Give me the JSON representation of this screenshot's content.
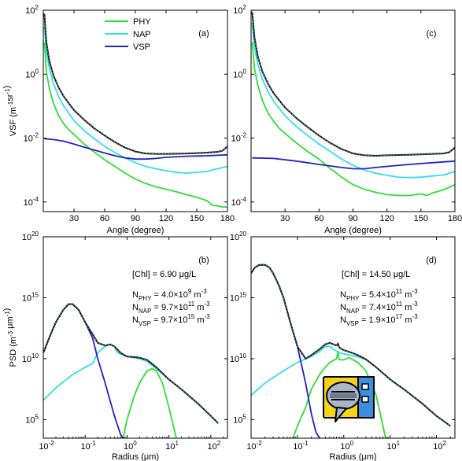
{
  "chart_data": [
    {
      "type": "line",
      "panel_label": "(a)",
      "xlabel": "Angle (degree)",
      "ylabel": "VSF (m-1sr-1)",
      "xlim": [
        0,
        180
      ],
      "ylim": [
        5e-05,
        100
      ],
      "yscale": "log",
      "xticks": [
        30,
        60,
        90,
        120,
        150,
        180
      ],
      "yticks": [
        0.0001,
        0.01,
        1,
        100
      ],
      "ytick_labels": [
        [
          "10",
          "-4"
        ],
        [
          "10",
          "-2"
        ],
        [
          "10",
          "0"
        ],
        [
          "10",
          "2"
        ]
      ],
      "legend": [
        "PHY",
        "NAP",
        "VSP"
      ],
      "series": [
        {
          "name": "PHY",
          "color": "#33dd33",
          "x": [
            1,
            3,
            6,
            10,
            15,
            20,
            25,
            30,
            40,
            50,
            60,
            70,
            80,
            90,
            100,
            110,
            120,
            130,
            140,
            150,
            160,
            165,
            170,
            175,
            180
          ],
          "y": [
            10,
            1.2,
            0.35,
            0.12,
            0.05,
            0.028,
            0.018,
            0.013,
            0.0065,
            0.0036,
            0.0021,
            0.0013,
            0.0008,
            0.00052,
            0.00038,
            0.0003,
            0.00025,
            0.00021,
            0.00017,
            0.00014,
            0.00011,
            8e-05,
            7.5e-05,
            7e-05,
            7e-05
          ]
        },
        {
          "name": "NAP",
          "color": "#33ddee",
          "x": [
            1,
            3,
            6,
            10,
            15,
            20,
            30,
            40,
            50,
            60,
            70,
            80,
            90,
            100,
            110,
            120,
            130,
            140,
            150,
            160,
            170,
            180
          ],
          "y": [
            30,
            5,
            1.5,
            0.5,
            0.2,
            0.1,
            0.035,
            0.017,
            0.0095,
            0.0055,
            0.0035,
            0.0024,
            0.0017,
            0.0013,
            0.0011,
            0.00095,
            0.00085,
            0.0008,
            0.00085,
            0.0009,
            0.0011,
            0.0013
          ]
        },
        {
          "name": "VSP",
          "color": "#2222cc",
          "x": [
            1,
            10,
            20,
            30,
            40,
            50,
            60,
            70,
            80,
            90,
            100,
            110,
            120,
            140,
            160,
            180
          ],
          "y": [
            0.0095,
            0.009,
            0.008,
            0.0065,
            0.0052,
            0.0042,
            0.0034,
            0.0028,
            0.0024,
            0.0022,
            0.0022,
            0.0023,
            0.0025,
            0.0027,
            0.0028,
            0.003
          ]
        },
        {
          "name": "",
          "color": "#111111",
          "x": [
            1,
            3,
            6,
            10,
            15,
            20,
            30,
            40,
            50,
            60,
            70,
            80,
            90,
            100,
            110,
            120,
            140,
            160,
            170,
            175,
            180
          ],
          "y": [
            80,
            10,
            2.5,
            0.9,
            0.38,
            0.2,
            0.075,
            0.037,
            0.02,
            0.012,
            0.0075,
            0.005,
            0.0038,
            0.0033,
            0.0032,
            0.0032,
            0.0033,
            0.0035,
            0.0037,
            0.004,
            0.0055
          ]
        }
      ]
    },
    {
      "type": "line",
      "panel_label": "(c)",
      "xlabel": "Angle (degree)",
      "ylabel": "",
      "xlim": [
        0,
        180
      ],
      "ylim": [
        5e-05,
        100
      ],
      "yscale": "log",
      "xticks": [
        30,
        60,
        90,
        120,
        150,
        180
      ],
      "yticks": [
        0.0001,
        0.01,
        1,
        100
      ],
      "series": [
        {
          "name": "PHY",
          "color": "#33dd33",
          "x": [
            1,
            3,
            6,
            10,
            15,
            20,
            25,
            30,
            40,
            50,
            60,
            70,
            80,
            90,
            100,
            110,
            120,
            130,
            140,
            150,
            155,
            160,
            170,
            180
          ],
          "y": [
            10,
            1.5,
            0.45,
            0.15,
            0.06,
            0.033,
            0.02,
            0.014,
            0.007,
            0.0038,
            0.0022,
            0.0011,
            0.0006,
            0.00035,
            0.00025,
            0.0002,
            0.00017,
            0.00016,
            0.00016,
            0.00018,
            0.00016,
            0.00019,
            0.00024,
            0.00035
          ]
        },
        {
          "name": "NAP",
          "color": "#33ddee",
          "x": [
            1,
            3,
            6,
            10,
            15,
            20,
            30,
            40,
            50,
            60,
            70,
            80,
            90,
            100,
            110,
            120,
            130,
            140,
            150,
            160,
            170,
            180
          ],
          "y": [
            40,
            7,
            2,
            0.7,
            0.28,
            0.14,
            0.05,
            0.023,
            0.012,
            0.0065,
            0.0038,
            0.0022,
            0.0014,
            0.001,
            0.0008,
            0.00068,
            0.0006,
            0.00058,
            0.0006,
            0.00065,
            0.0007,
            0.0009
          ]
        },
        {
          "name": "VSP",
          "color": "#2222cc",
          "x": [
            1,
            20,
            40,
            60,
            80,
            90,
            100,
            110,
            120,
            140,
            160,
            180
          ],
          "y": [
            0.0024,
            0.0023,
            0.0019,
            0.0015,
            0.0012,
            0.0011,
            0.0011,
            0.0012,
            0.0013,
            0.0015,
            0.0017,
            0.0019
          ]
        },
        {
          "name": "",
          "color": "#111111",
          "x": [
            1,
            3,
            6,
            10,
            15,
            20,
            30,
            40,
            50,
            60,
            70,
            80,
            90,
            100,
            110,
            120,
            140,
            160,
            170,
            175,
            180
          ],
          "y": [
            90,
            14,
            3.5,
            1.2,
            0.5,
            0.25,
            0.09,
            0.042,
            0.022,
            0.012,
            0.007,
            0.0045,
            0.0033,
            0.0029,
            0.0028,
            0.0029,
            0.003,
            0.0032,
            0.0033,
            0.0036,
            0.005
          ]
        }
      ]
    },
    {
      "type": "line",
      "panel_label": "(b)",
      "xlabel": "Radius (μm)",
      "ylabel": "PSD (m-3 μm-1)",
      "xlim": [
        0.01,
        250
      ],
      "ylim": [
        3000,
        100000000000000000000
      ],
      "xscale": "log",
      "yscale": "log",
      "xticks": [
        0.01,
        0.1,
        1,
        10,
        100
      ],
      "xtick_labels": [
        [
          "10",
          "-2"
        ],
        [
          "10",
          "-1"
        ],
        [
          "10",
          "0"
        ],
        [
          "10",
          "1"
        ],
        [
          "10",
          "2"
        ]
      ],
      "yticks": [
        100000,
        10000000000,
        1000000000000000,
        100000000000000000000
      ],
      "ytick_labels": [
        [
          "10",
          "5"
        ],
        [
          "10",
          "10"
        ],
        [
          "10",
          "15"
        ],
        [
          "10",
          "20"
        ]
      ],
      "annotations": {
        "chl": "[Chl] = 6.90 μg/L",
        "n_phy": {
          "label": "N",
          "sub": "PHY",
          "value": " = 4.0×10",
          "exp": "9",
          "unit": " m",
          "unit_exp": "-3"
        },
        "n_nap": {
          "label": "N",
          "sub": "NAP",
          "value": " = 9.7×10",
          "exp": "11",
          "unit": " m",
          "unit_exp": "-3"
        },
        "n_vsp": {
          "label": "N",
          "sub": "VSP",
          "value": " = 9.7×10",
          "exp": "15",
          "unit": " m",
          "unit_exp": "-3"
        }
      },
      "series": [
        {
          "name": "PHY",
          "color": "#33dd33",
          "x": [
            0.8,
            1,
            1.5,
            2,
            3,
            4,
            5,
            7,
            10,
            15
          ],
          "y": [
            3000,
            100000,
            10000000,
            100000000,
            1000000000,
            1500000000,
            1000000000,
            100000000,
            1000000,
            3000
          ]
        },
        {
          "name": "NAP",
          "color": "#33ddee",
          "x": [
            0.01,
            0.02,
            0.05,
            0.1,
            0.15,
            0.2,
            0.3,
            0.4,
            0.5,
            0.6,
            0.8,
            1,
            1.5,
            2,
            3,
            5,
            10,
            20,
            50,
            100,
            150
          ],
          "y": [
            4000000,
            40000000,
            500000000,
            2000000000,
            4000000000,
            30000000000,
            100000000000,
            150000000000,
            100000000000,
            30000000000,
            20000000000,
            15000000000,
            12000000000,
            10000000000,
            6000000000,
            1500000000,
            200000000,
            30000000,
            2000000,
            200000,
            50000
          ]
        },
        {
          "name": "VSP",
          "color": "#2222cc",
          "x": [
            0.01,
            0.015,
            0.02,
            0.03,
            0.04,
            0.05,
            0.07,
            0.1,
            0.15,
            0.2,
            0.3,
            0.4,
            0.5,
            0.6,
            0.7,
            0.8
          ],
          "y": [
            30000000000,
            1000000000000,
            10000000000000,
            100000000000000,
            300000000000000,
            300000000000000,
            100000000000000,
            10000000000000,
            500000000000,
            10000000000,
            100000000,
            3000000,
            200000,
            30000,
            6000,
            3000
          ]
        },
        {
          "name": "",
          "color": "#111111",
          "x": [
            0.01,
            0.015,
            0.02,
            0.03,
            0.04,
            0.05,
            0.07,
            0.1,
            0.15,
            0.2,
            0.3,
            0.4,
            0.5,
            0.7,
            1,
            1.5,
            2,
            3,
            5,
            10,
            20,
            50,
            100,
            150
          ],
          "y": [
            30000000000,
            1000000000000,
            10000000000000,
            100000000000000,
            300000000000000,
            300000000000000,
            100000000000000,
            10000000000000,
            1000000000000,
            200000000000,
            120000000000,
            150000000000,
            100000000000,
            30000000000,
            15000000000,
            14000000000,
            12000000000,
            8000000000,
            2000000000,
            200000000,
            30000000,
            2000000,
            200000,
            50000
          ]
        }
      ]
    },
    {
      "type": "line",
      "panel_label": "(d)",
      "xlabel": "Radius (μm)",
      "ylabel": "",
      "xlim": [
        0.01,
        250
      ],
      "ylim": [
        3000,
        100000000000000000000
      ],
      "xscale": "log",
      "yscale": "log",
      "xticks": [
        0.01,
        0.1,
        1,
        10,
        100
      ],
      "yticks": [
        100000,
        10000000000,
        1000000000000000,
        100000000000000000000
      ],
      "annotations": {
        "chl": "[Chl] = 14.50 μg/L",
        "n_phy": {
          "label": "N",
          "sub": "PHY",
          "value": " = 5.4×10",
          "exp": "11",
          "unit": " m",
          "unit_exp": "-3"
        },
        "n_nap": {
          "label": "N",
          "sub": "NAP",
          "value": " = 7.4×10",
          "exp": "11",
          "unit": " m",
          "unit_exp": "-3"
        },
        "n_vsp": {
          "label": "N",
          "sub": "VSP",
          "value": " = 1.9×10",
          "exp": "17",
          "unit": " m",
          "unit_exp": "-3"
        }
      },
      "series": [
        {
          "name": "PHY",
          "color": "#33dd33",
          "x": [
            0.08,
            0.1,
            0.15,
            0.2,
            0.3,
            0.4,
            0.5,
            0.7,
            0.75,
            0.8,
            1,
            1.3,
            1.5,
            2,
            3,
            5,
            7,
            8
          ],
          "y": [
            3000,
            30000,
            1000000,
            30000000,
            500000000,
            2000000000,
            5000000000,
            10000000000,
            40000000000,
            8000000000,
            8000000000,
            12000000000,
            9000000000,
            5000000000,
            1000000000,
            10000000,
            30000,
            3000
          ]
        },
        {
          "name": "NAP",
          "color": "#33ddee",
          "x": [
            0.01,
            0.02,
            0.05,
            0.1,
            0.2,
            0.3,
            0.4,
            0.5,
            0.6,
            0.8,
            1,
            1.5,
            2,
            3,
            5,
            10,
            20,
            50,
            100,
            200
          ],
          "y": [
            10000000,
            100000000,
            1000000000,
            5000000000,
            15000000000,
            40000000000,
            100000000000,
            100000000000,
            60000000000,
            30000000000,
            25000000000,
            18000000000,
            15000000000,
            8000000000,
            2000000000,
            200000000,
            30000000,
            2000000,
            200000,
            30000
          ]
        },
        {
          "name": "VSP",
          "color": "#2222cc",
          "x": [
            0.01,
            0.012,
            0.015,
            0.02,
            0.025,
            0.03,
            0.04,
            0.05,
            0.07,
            0.1,
            0.15,
            0.2,
            0.25,
            0.3
          ],
          "y": [
            100000000000000000,
            300000000000000000,
            500000000000000000,
            500000000000000000,
            300000000000000000,
            100000000000000000,
            10000000000000000,
            1000000000000000,
            10000000000000,
            100000000000,
            100000000,
            300000,
            10000,
            3000
          ]
        },
        {
          "name": "",
          "color": "#111111",
          "x": [
            0.01,
            0.012,
            0.015,
            0.02,
            0.025,
            0.03,
            0.04,
            0.05,
            0.07,
            0.1,
            0.15,
            0.2,
            0.3,
            0.4,
            0.5,
            0.6,
            0.7,
            0.75,
            0.8,
            1,
            1.5,
            2,
            3,
            5,
            10,
            20,
            50,
            100,
            200
          ],
          "y": [
            100000000000000000,
            300000000000000000,
            500000000000000000,
            500000000000000000,
            300000000000000000,
            100000000000000000,
            10000000000000000,
            1000000000000000,
            10000000000000,
            100000000000,
            10000000000,
            20000000000,
            60000000000,
            150000000000,
            200000000000,
            150000000000,
            120000000000,
            180000000000,
            80000000000,
            50000000000,
            30000000000,
            20000000000,
            9000000000,
            2000000000,
            200000000,
            30000000,
            2000000,
            200000,
            30000
          ]
        }
      ]
    }
  ],
  "overlay_icon": "speech-bubble-app-icon"
}
